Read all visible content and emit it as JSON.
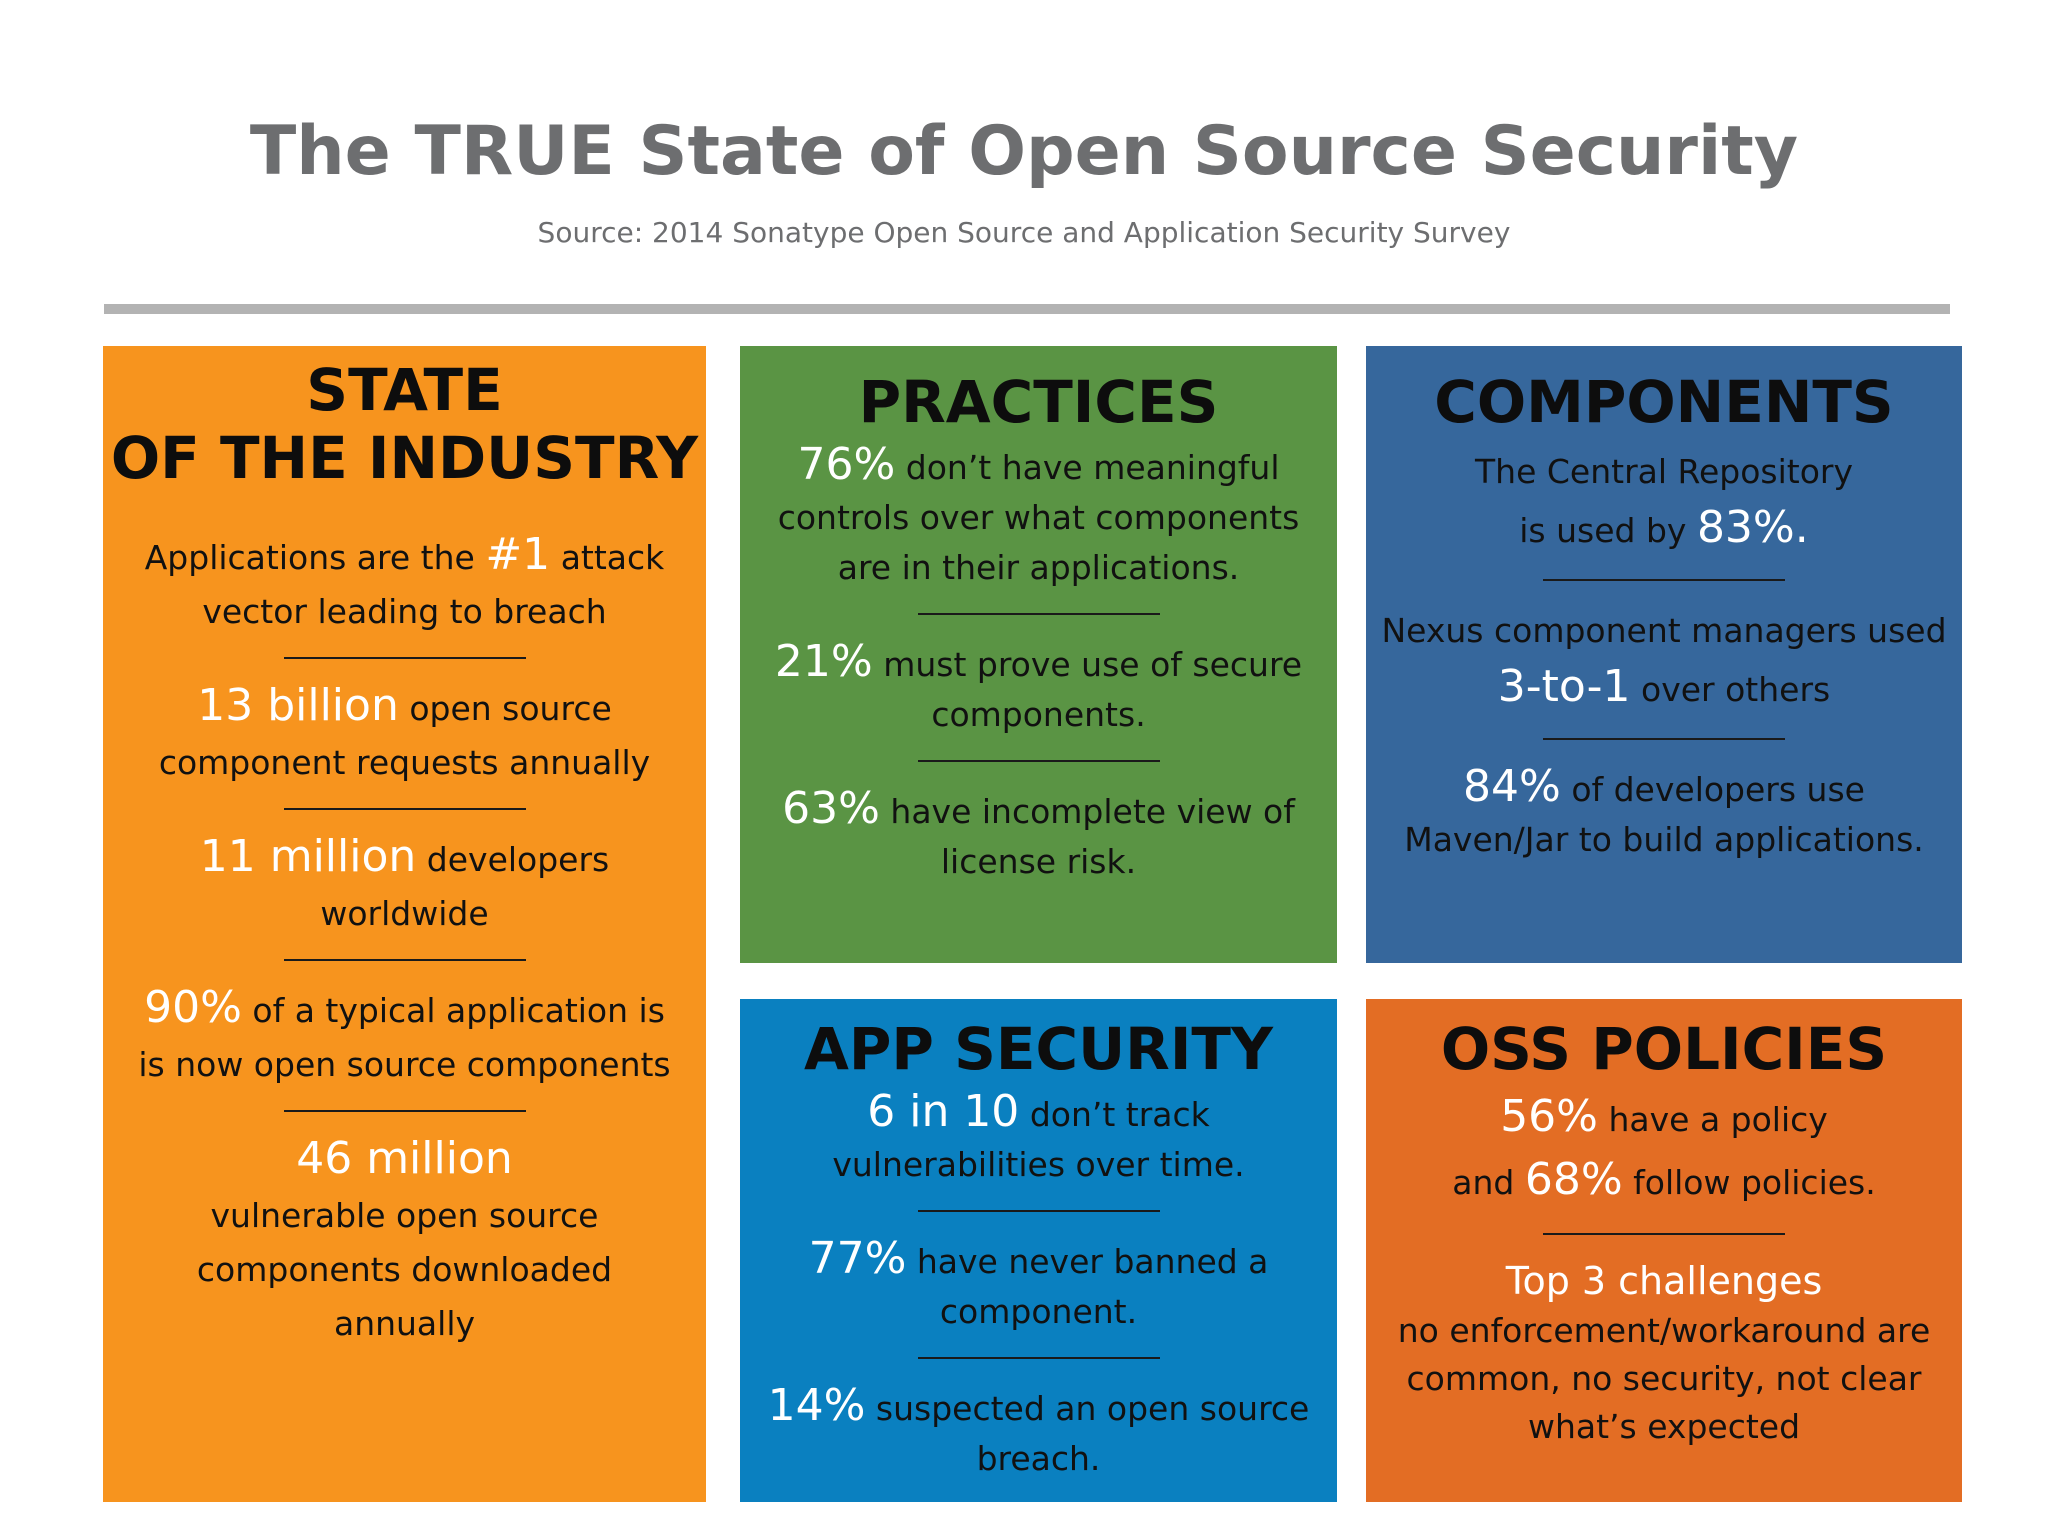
{
  "header": {
    "title": "The TRUE State of Open Source Security",
    "source": "Source: 2014 Sonatype Open Source and Application Security Survey"
  },
  "panels": {
    "industry": {
      "title_line1": "STATE",
      "title_line2": "OF THE INDUSTRY",
      "s1": {
        "pre": "Applications are the",
        "big": "#1",
        "post": "attack",
        "line2": "vector leading to breach"
      },
      "s2": {
        "big": "13 billion",
        "post": "open source",
        "line2": "component requests annually"
      },
      "s3": {
        "big": "11 million",
        "post": "developers",
        "line2": "worldwide"
      },
      "s4": {
        "big": "90%",
        "post": "of a typical application is",
        "line2": "is now open source components"
      },
      "s5": {
        "big": "46 million",
        "line2": "vulnerable open source",
        "line3": "components downloaded",
        "line4": "annually"
      },
      "color": "#f7941e"
    },
    "practices": {
      "title": "PRACTICES",
      "s1": {
        "big": "76%",
        "post": "don’t have meaningful",
        "line2": "controls over what components",
        "line3": "are in their applications."
      },
      "s2": {
        "big": "21%",
        "post": "must prove use of secure",
        "line2": "components."
      },
      "s3": {
        "big": "63%",
        "post": "have incomplete view of",
        "line2": "license risk."
      },
      "color": "#5a9444"
    },
    "components": {
      "title": "COMPONENTS",
      "s1": {
        "line1": "The Central Repository",
        "pre": "is used by",
        "big": "83%."
      },
      "s2": {
        "line1": "Nexus component managers used",
        "big": "3-to-1",
        "post": "over others"
      },
      "s3": {
        "big": "84%",
        "post": "of developers use",
        "line2": "Maven/Jar to build applications."
      },
      "color": "#36679c"
    },
    "appsec": {
      "title": "APP SECURITY",
      "s1": {
        "big": "6 in 10",
        "post": "don’t track",
        "line2": "vulnerabilities over time."
      },
      "s2": {
        "big": "77%",
        "post": "have never banned a",
        "line2": "component."
      },
      "s3": {
        "big": "14%",
        "post": "suspected an open source",
        "line2": "breach."
      },
      "color": "#0a80c0"
    },
    "oss": {
      "title": "OSS POLICIES",
      "s1": {
        "big": "56%",
        "post": "have a policy",
        "pre2": "and",
        "big2": "68%",
        "post2": "follow policies."
      },
      "s2": {
        "big": "Top 3 challenges",
        "line2": "no enforcement/workaround are",
        "line3": "common, no security, not clear",
        "line4": "what’s expected"
      },
      "color": "#e36d24"
    }
  }
}
